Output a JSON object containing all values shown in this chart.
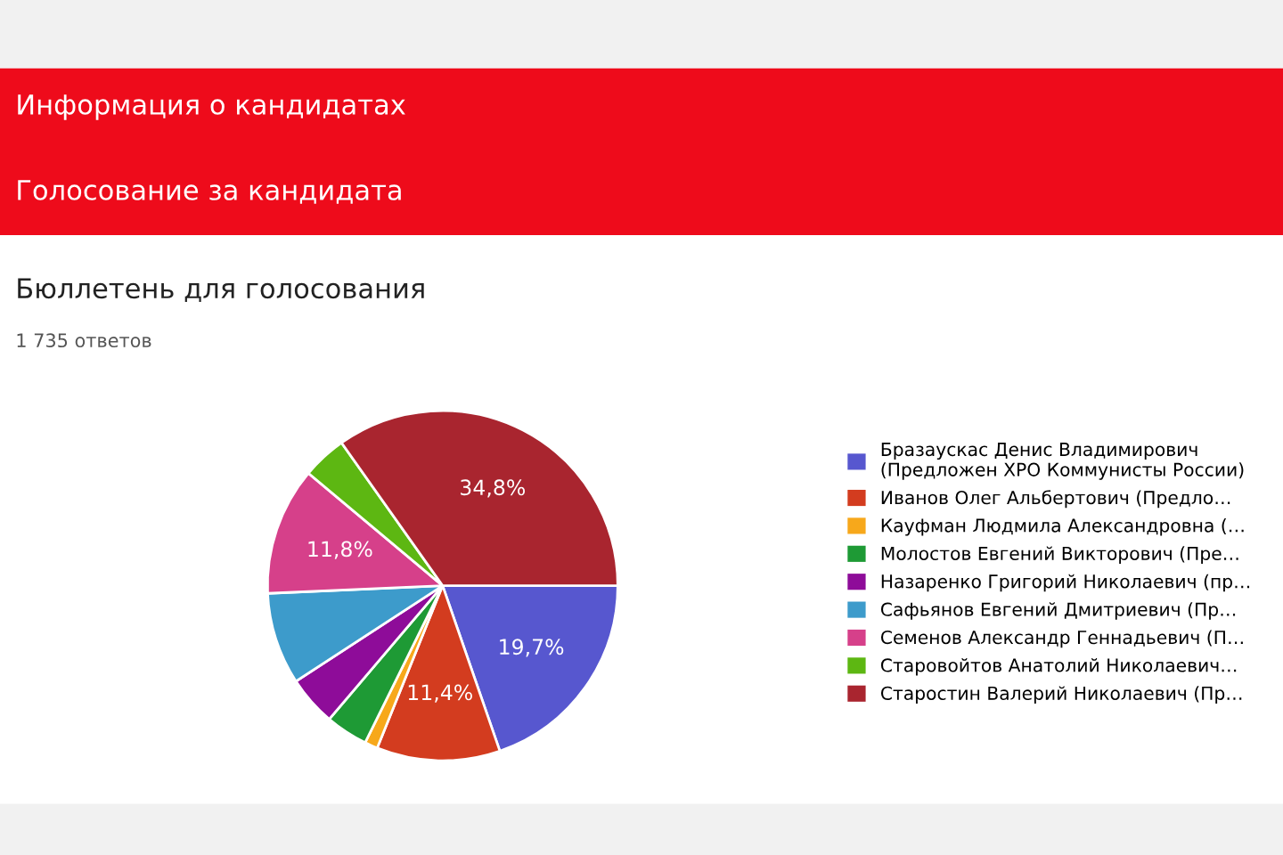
{
  "chart_data": {
    "type": "pie",
    "title": "Бюллетень для голосования",
    "subtitle": "1 735 ответов",
    "annotations": [
      "Информация о кандидатах",
      "Голосование за кандидата"
    ],
    "categories": [
      "Бразаускас Денис Владимирович\n(Предложен ХРО Коммунисты России)",
      "Иванов Олег Альбертович (Предло…",
      "Кауфман Людмила Александровна (…",
      "Молостов Евгений Викторович (Пре…",
      "Назаренко Григорий Николаевич (пр…",
      "Сафьянов Евгений Дмитриевич (Пр…",
      "Семенов Александр Геннадьевич (П…",
      "Старовойтов Анатолий Николаевич…",
      "Старостин Валерий Николаевич (Пр…"
    ],
    "values": [
      19.7,
      11.4,
      1.2,
      3.9,
      4.6,
      8.5,
      11.8,
      4.1,
      34.8
    ],
    "value_labels": [
      "19,7%",
      "11,4%",
      null,
      null,
      null,
      null,
      "11,8%",
      null,
      "34,8%"
    ],
    "colors": [
      "#5757cf",
      "#d33c1f",
      "#f7a81b",
      "#1e9a35",
      "#8e0c99",
      "#3d9bcb",
      "#d6408a",
      "#5db712",
      "#a9252f"
    ],
    "legend": "right"
  }
}
